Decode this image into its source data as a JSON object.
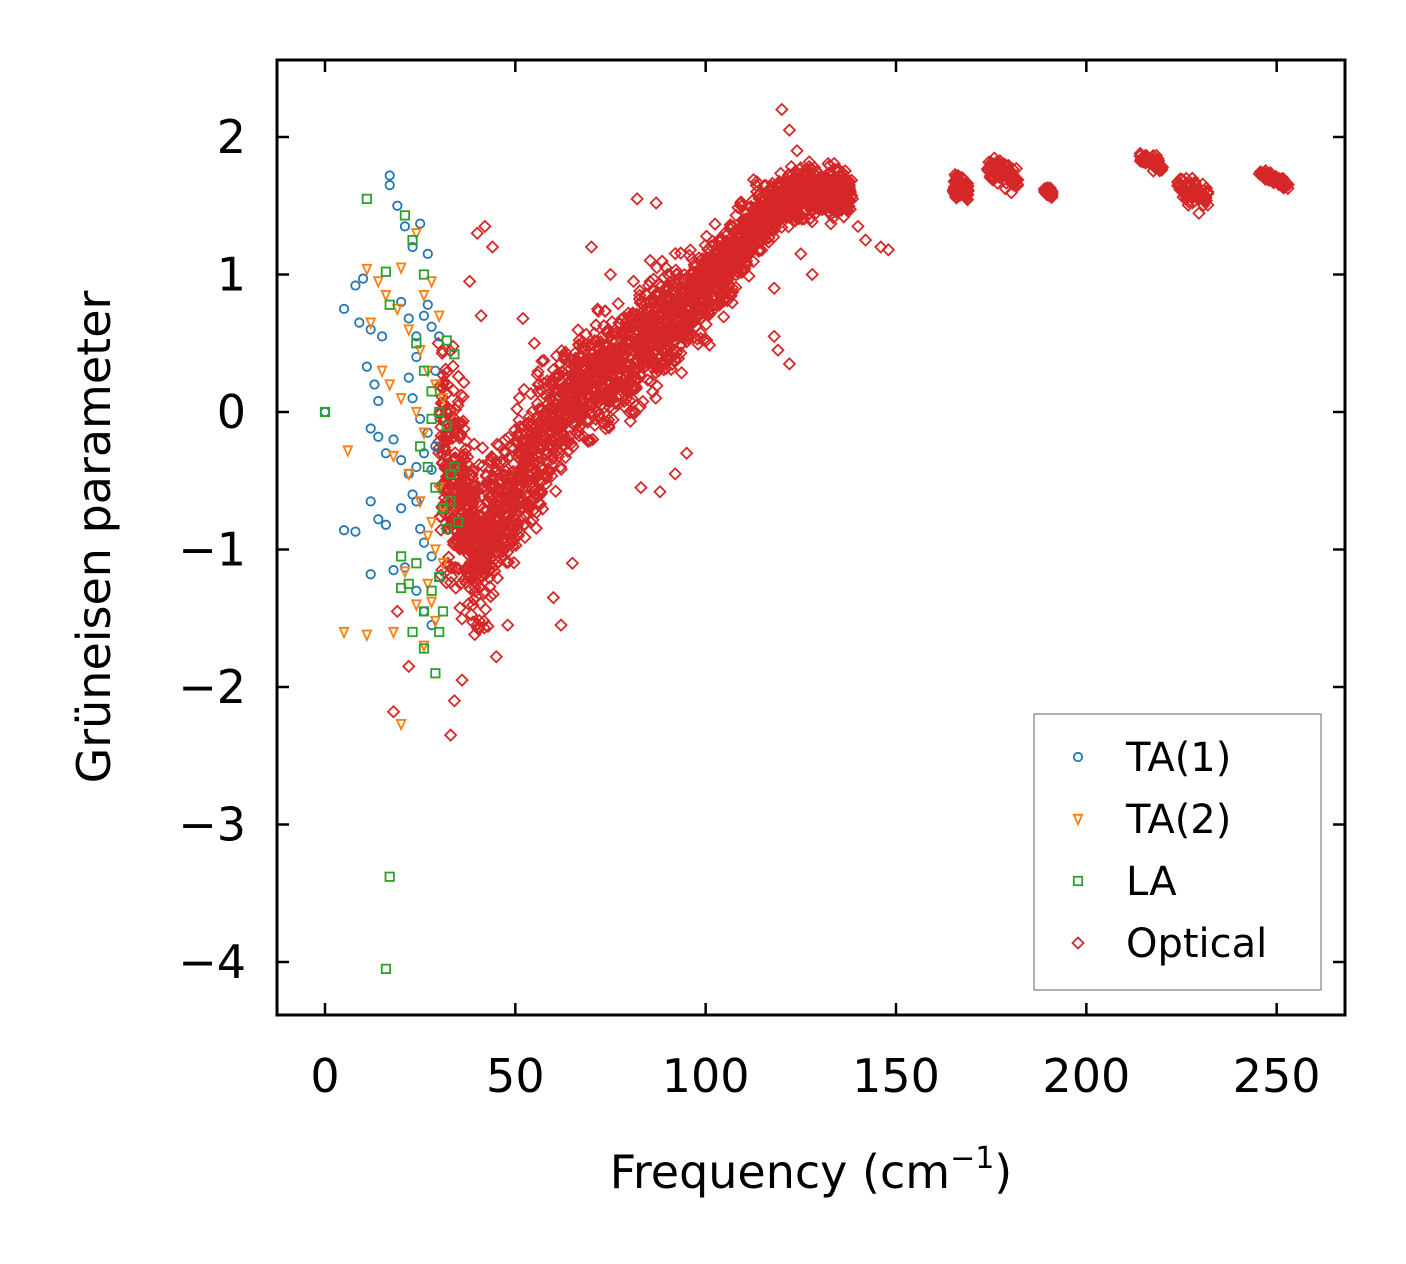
{
  "chart_data": {
    "type": "scatter",
    "title": "",
    "xlabel": "Frequency (cm",
    "xlabel_sup": "−1",
    "xlabel_close": ")",
    "ylabel": "Grüneisen parameter",
    "xlim": [
      -13,
      268
    ],
    "ylim": [
      -4.37,
      2.55
    ],
    "xticks": [
      0,
      50,
      100,
      150,
      200,
      250
    ],
    "xtick_labels": [
      "0",
      "50",
      "100",
      "150",
      "200",
      "250"
    ],
    "yticks": [
      2,
      1,
      0,
      -1,
      -2,
      -3,
      -4
    ],
    "ytick_labels": [
      "2",
      "1",
      "0",
      "−1",
      "−2",
      "−3",
      "−4"
    ],
    "grid": false,
    "legend_position": "bottom-right",
    "series": [
      {
        "name": "TA(1)",
        "marker": "circle",
        "color": "#1f77b4",
        "points": [
          [
            0,
            0
          ],
          [
            5,
            0.75
          ],
          [
            8,
            0.92
          ],
          [
            10,
            0.97
          ],
          [
            12,
            0.6
          ],
          [
            15,
            0.55
          ],
          [
            17,
            1.72
          ],
          [
            17,
            1.65
          ],
          [
            19,
            1.5
          ],
          [
            21,
            1.35
          ],
          [
            23,
            1.2
          ],
          [
            25,
            1.37
          ],
          [
            27,
            1.15
          ],
          [
            9,
            0.65
          ],
          [
            11,
            0.33
          ],
          [
            13,
            0.2
          ],
          [
            14,
            0.08
          ],
          [
            12,
            -0.12
          ],
          [
            14,
            -0.18
          ],
          [
            16,
            -0.3
          ],
          [
            18,
            -0.2
          ],
          [
            20,
            -0.35
          ],
          [
            22,
            -0.45
          ],
          [
            24,
            -0.4
          ],
          [
            26,
            -0.3
          ],
          [
            28,
            -0.42
          ],
          [
            5,
            -0.86
          ],
          [
            8,
            -0.87
          ],
          [
            12,
            -0.65
          ],
          [
            14,
            -0.78
          ],
          [
            16,
            -0.82
          ],
          [
            20,
            -0.7
          ],
          [
            23,
            -0.6
          ],
          [
            25,
            -0.85
          ],
          [
            12,
            -1.18
          ],
          [
            18,
            -1.15
          ],
          [
            21,
            -1.13
          ],
          [
            24,
            -1.3
          ],
          [
            26,
            -1.45
          ],
          [
            28,
            -1.55
          ],
          [
            22,
            0.25
          ],
          [
            24,
            0.55
          ],
          [
            26,
            0.7
          ],
          [
            28,
            0.62
          ],
          [
            30,
            0.55
          ],
          [
            23,
            0.1
          ],
          [
            25,
            -0.05
          ],
          [
            27,
            -0.15
          ],
          [
            29,
            -0.25
          ],
          [
            24,
            -0.65
          ],
          [
            26,
            -0.95
          ],
          [
            28,
            -1.05
          ],
          [
            30,
            -1.2
          ],
          [
            20,
            0.8
          ],
          [
            22,
            0.68
          ],
          [
            24,
            0.4
          ],
          [
            27,
            0.78
          ],
          [
            29,
            0.3
          ]
        ]
      },
      {
        "name": "TA(2)",
        "marker": "triangle-down",
        "color": "#ff7f0e",
        "points": [
          [
            6,
            -0.28
          ],
          [
            11,
            1.04
          ],
          [
            14,
            0.95
          ],
          [
            16,
            0.85
          ],
          [
            20,
            1.05
          ],
          [
            19,
            0.75
          ],
          [
            22,
            0.6
          ],
          [
            12,
            0.65
          ],
          [
            15,
            0.3
          ],
          [
            17,
            0.2
          ],
          [
            20,
            0.1
          ],
          [
            24,
            0.0
          ],
          [
            26,
            -0.15
          ],
          [
            18,
            -0.32
          ],
          [
            22,
            -0.45
          ],
          [
            25,
            -0.65
          ],
          [
            28,
            -0.8
          ],
          [
            30,
            -0.55
          ],
          [
            5,
            -1.6
          ],
          [
            11,
            -1.62
          ],
          [
            18,
            -1.6
          ],
          [
            21,
            -1.16
          ],
          [
            24,
            -1.4
          ],
          [
            27,
            -1.25
          ],
          [
            29,
            -1.52
          ],
          [
            31,
            -1.1
          ],
          [
            20,
            -2.27
          ],
          [
            25,
            0.45
          ],
          [
            27,
            0.3
          ],
          [
            29,
            0.2
          ],
          [
            31,
            0.1
          ],
          [
            26,
            0.85
          ],
          [
            28,
            0.95
          ],
          [
            30,
            0.7
          ],
          [
            24,
            1.3
          ],
          [
            27,
            -0.9
          ],
          [
            29,
            -1.0
          ],
          [
            31,
            -0.7
          ],
          [
            26,
            -1.7
          ],
          [
            28,
            -1.38
          ]
        ]
      },
      {
        "name": "LA",
        "marker": "square",
        "color": "#2ca02c",
        "points": [
          [
            0,
            0
          ],
          [
            11,
            1.55
          ],
          [
            16,
            1.02
          ],
          [
            17,
            0.78
          ],
          [
            21,
            1.43
          ],
          [
            23,
            1.25
          ],
          [
            26,
            1.0
          ],
          [
            24,
            0.5
          ],
          [
            26,
            0.3
          ],
          [
            28,
            0.15
          ],
          [
            30,
            0.0
          ],
          [
            32,
            -0.1
          ],
          [
            25,
            -0.25
          ],
          [
            27,
            -0.4
          ],
          [
            29,
            -0.55
          ],
          [
            31,
            -0.7
          ],
          [
            33,
            -0.45
          ],
          [
            20,
            -1.05
          ],
          [
            22,
            -1.25
          ],
          [
            24,
            -1.1
          ],
          [
            26,
            -1.45
          ],
          [
            28,
            -1.3
          ],
          [
            30,
            -1.6
          ],
          [
            20,
            -1.28
          ],
          [
            23,
            -1.6
          ],
          [
            26,
            -1.72
          ],
          [
            29,
            -1.9
          ],
          [
            17,
            -3.38
          ],
          [
            16,
            -4.05
          ],
          [
            34,
            0.42
          ],
          [
            33,
            -0.65
          ],
          [
            32,
            -0.85
          ],
          [
            30,
            -1.2
          ],
          [
            28,
            -0.05
          ],
          [
            32,
            0.52
          ],
          [
            34,
            -0.4
          ],
          [
            35,
            -0.8
          ],
          [
            31,
            -1.45
          ]
        ]
      },
      {
        "name": "Optical",
        "marker": "diamond",
        "color": "#d62728",
        "points": []
      }
    ]
  },
  "optical_bands": {
    "description_values": "x, y_center, half_spread (data units) along the dense optical branch",
    "main": [
      [
        30,
        -0.3,
        1.1
      ],
      [
        33,
        -0.4,
        1.3
      ],
      [
        36,
        -0.6,
        1.1
      ],
      [
        38,
        -0.85,
        0.8
      ],
      [
        40,
        -1.0,
        0.85
      ],
      [
        43,
        -0.9,
        0.75
      ],
      [
        46,
        -0.75,
        0.7
      ],
      [
        50,
        -0.55,
        0.7
      ],
      [
        54,
        -0.35,
        0.7
      ],
      [
        58,
        -0.15,
        0.65
      ],
      [
        62,
        0.05,
        0.65
      ],
      [
        66,
        0.15,
        0.6
      ],
      [
        70,
        0.2,
        0.55
      ],
      [
        74,
        0.3,
        0.6
      ],
      [
        78,
        0.35,
        0.6
      ],
      [
        82,
        0.45,
        0.6
      ],
      [
        86,
        0.55,
        0.6
      ],
      [
        90,
        0.65,
        0.6
      ],
      [
        94,
        0.75,
        0.55
      ],
      [
        98,
        0.85,
        0.5
      ],
      [
        102,
        0.95,
        0.5
      ],
      [
        106,
        1.1,
        0.45
      ],
      [
        110,
        1.25,
        0.4
      ],
      [
        114,
        1.4,
        0.35
      ],
      [
        118,
        1.5,
        0.3
      ],
      [
        122,
        1.55,
        0.3
      ],
      [
        126,
        1.6,
        0.3
      ],
      [
        130,
        1.6,
        0.25
      ],
      [
        134,
        1.6,
        0.25
      ],
      [
        138,
        1.6,
        0.2
      ]
    ],
    "clusters": [
      [
        167,
        1.62,
        0.12,
        2
      ],
      [
        178,
        1.75,
        0.15,
        4
      ],
      [
        190,
        1.6,
        0.05,
        1
      ],
      [
        217,
        1.82,
        0.07,
        3
      ],
      [
        228,
        1.6,
        0.15,
        4
      ],
      [
        249,
        1.7,
        0.05,
        4
      ]
    ],
    "outliers": [
      [
        18,
        -2.18
      ],
      [
        22,
        -1.85
      ],
      [
        19,
        -1.45
      ],
      [
        33,
        -2.35
      ],
      [
        34,
        -2.1
      ],
      [
        36,
        -1.95
      ],
      [
        40,
        1.3
      ],
      [
        42,
        1.35
      ],
      [
        44,
        1.2
      ],
      [
        38,
        0.95
      ],
      [
        41,
        0.7
      ],
      [
        45,
        -1.78
      ],
      [
        48,
        -1.55
      ],
      [
        52,
        0.68
      ],
      [
        55,
        0.5
      ],
      [
        60,
        -1.35
      ],
      [
        62,
        -1.55
      ],
      [
        65,
        -1.1
      ],
      [
        70,
        1.2
      ],
      [
        75,
        1.0
      ],
      [
        82,
        1.55
      ],
      [
        87,
        1.52
      ],
      [
        92,
        0.95
      ],
      [
        83,
        -0.55
      ],
      [
        88,
        -0.58
      ],
      [
        92,
        -0.45
      ],
      [
        95,
        -0.3
      ],
      [
        108,
        1.05
      ],
      [
        112,
        1.3
      ],
      [
        118,
        0.9
      ],
      [
        120,
        2.2
      ],
      [
        122,
        2.05
      ],
      [
        124,
        1.9
      ],
      [
        118,
        0.55
      ],
      [
        119,
        0.45
      ],
      [
        122,
        0.35
      ],
      [
        125,
        1.15
      ],
      [
        128,
        1.0
      ],
      [
        140,
        1.35
      ],
      [
        142,
        1.25
      ],
      [
        146,
        1.2
      ],
      [
        148,
        1.18
      ]
    ]
  },
  "colors": {
    "ta1": "#1f77b4",
    "ta2": "#ff7f0e",
    "la": "#2ca02c",
    "optical": "#d62728"
  }
}
